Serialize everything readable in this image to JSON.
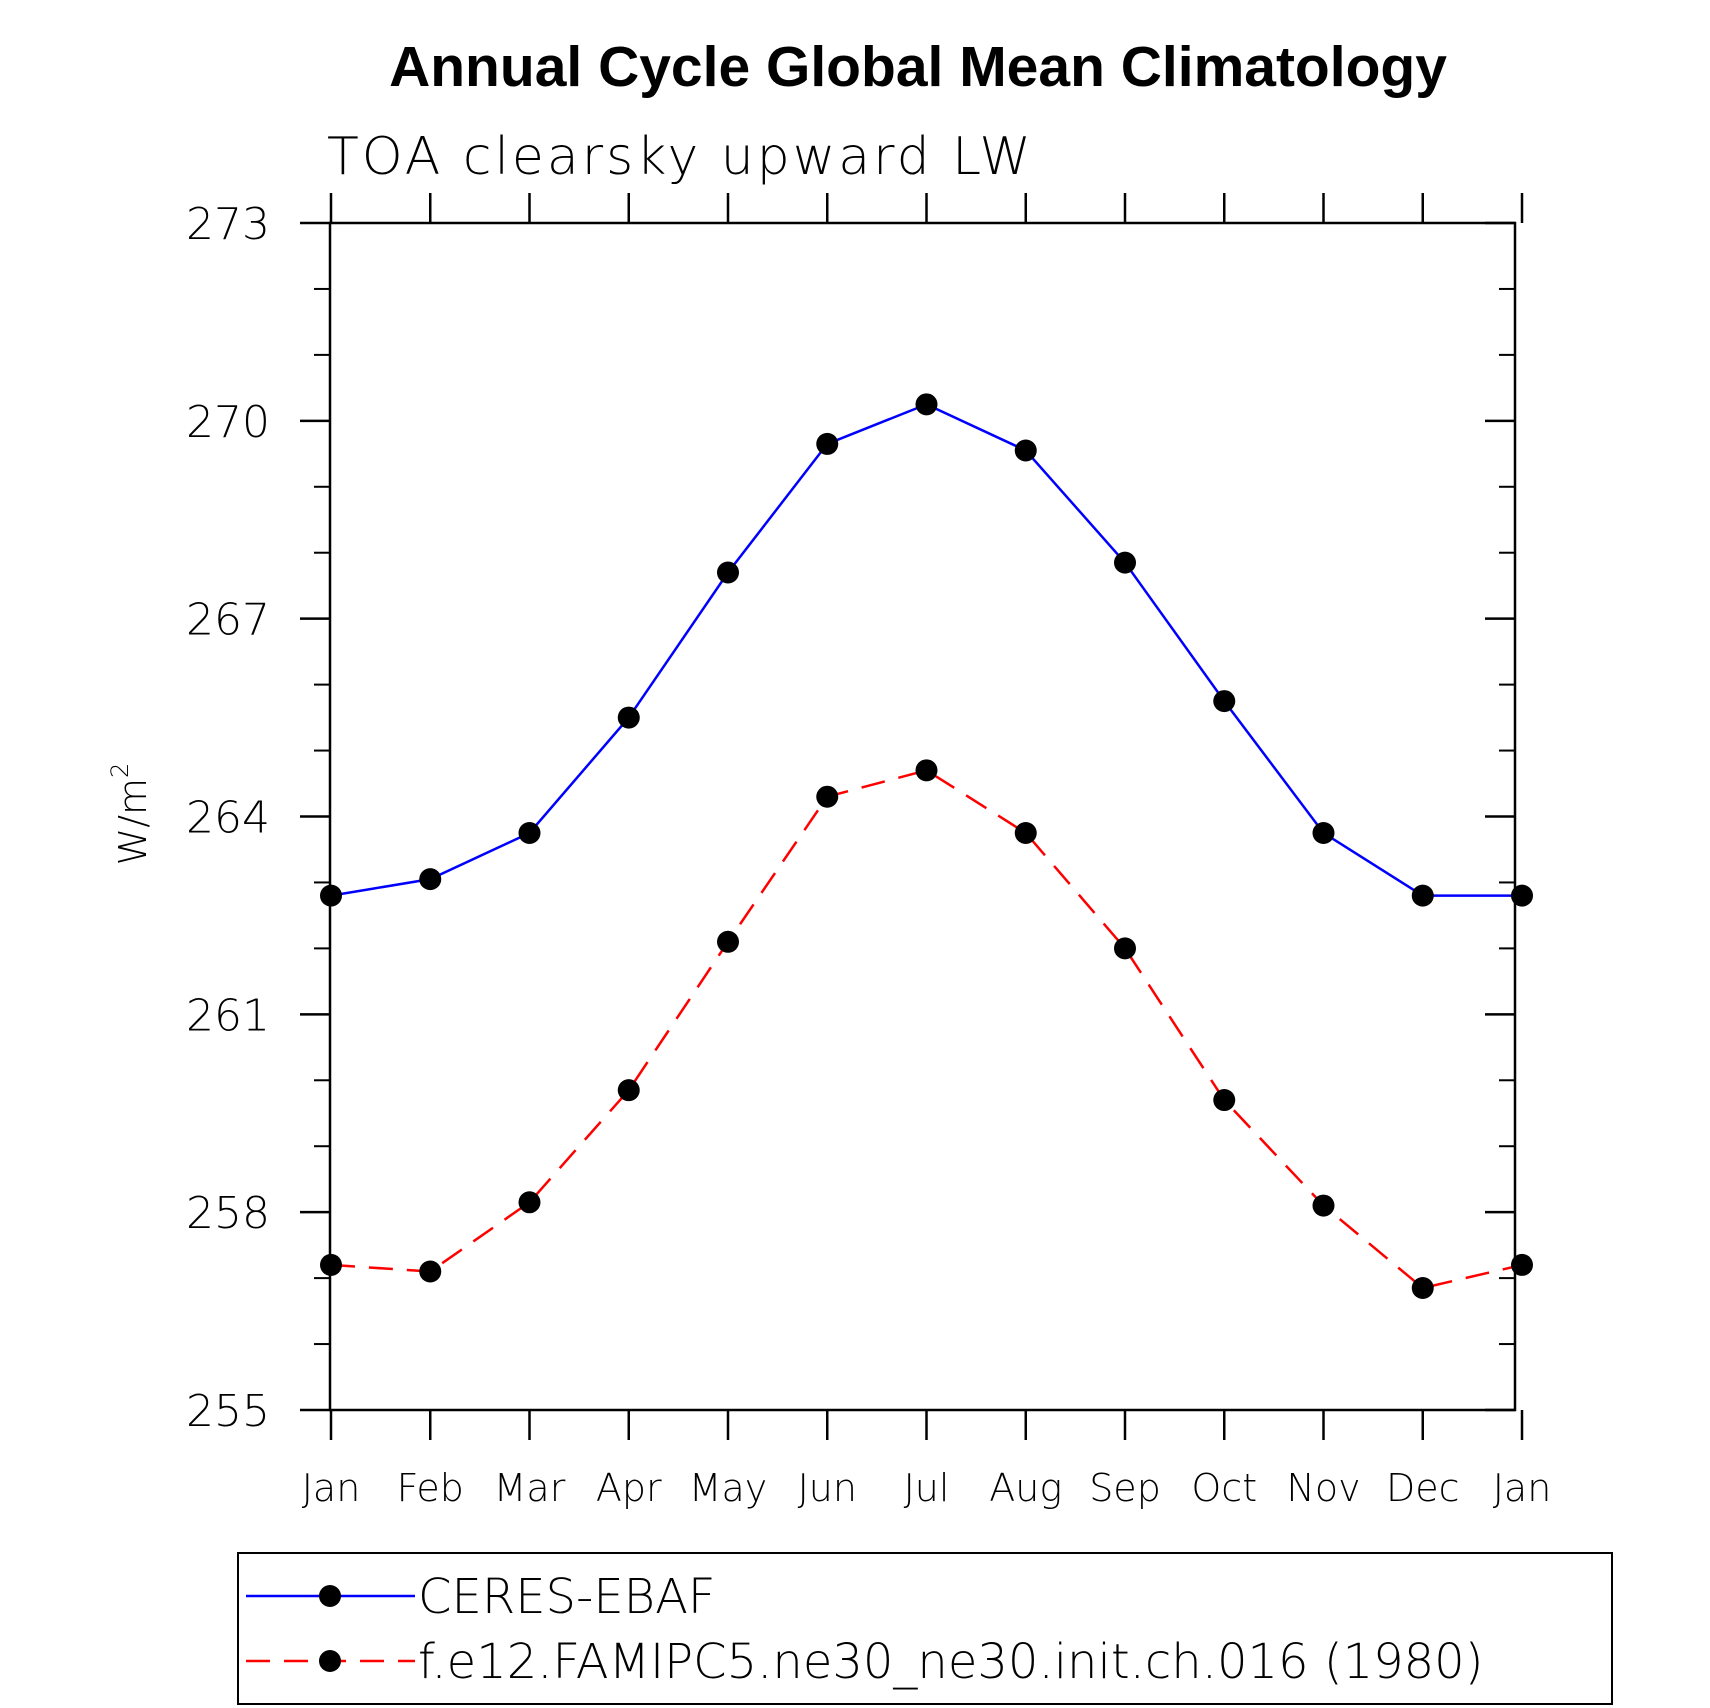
{
  "chart_data": {
    "type": "line",
    "title": "Annual Cycle Global Mean Climatology",
    "subtitle": "TOA clearsky upward LW",
    "ylabel_base": "W/m",
    "ylabel_exp": "2",
    "xlabel": "",
    "categories": [
      "Jan",
      "Feb",
      "Mar",
      "Apr",
      "May",
      "Jun",
      "Jul",
      "Aug",
      "Sep",
      "Oct",
      "Nov",
      "Dec",
      "Jan"
    ],
    "ylim": [
      255,
      273
    ],
    "yticks": [
      255,
      258,
      261,
      264,
      267,
      270,
      273
    ],
    "y_minor_step": 1,
    "grid": false,
    "legend_position": "bottom",
    "series": [
      {
        "name": "CERES-EBAF",
        "color": "#0000ff",
        "dash": "solid",
        "marker": "filled-circle",
        "values": [
          262.8,
          263.05,
          263.75,
          265.5,
          267.7,
          269.65,
          270.25,
          269.55,
          267.85,
          265.75,
          263.75,
          262.8,
          262.8
        ]
      },
      {
        "name": "f.e12.FAMIPC5.ne30_ne30.init.ch.016 (1980)",
        "color": "#ff0000",
        "dash": "dashed",
        "marker": "filled-circle",
        "values": [
          257.2,
          257.1,
          258.15,
          259.85,
          262.1,
          264.3,
          264.7,
          263.75,
          262.0,
          259.7,
          258.1,
          256.85,
          257.2
        ]
      }
    ]
  }
}
